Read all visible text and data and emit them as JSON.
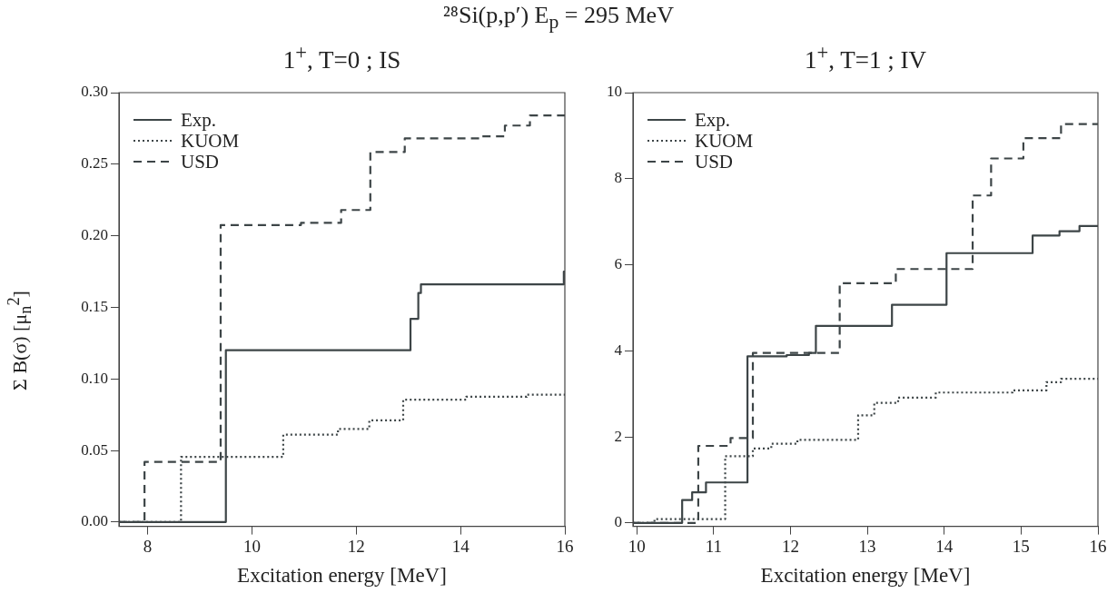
{
  "chart_data": [
    {
      "type": "other",
      "title": "²⁸Si(p,p′)  E$_{p}$ = 295 MeV"
    },
    {
      "type": "step",
      "title": "1$^{+}$, T=0 ; IS",
      "xlabel": "Excitation energy [MeV]",
      "ylabel": "Σ B(σ)  [μ$_{n}$$^{2}$]",
      "xlim": [
        7.45,
        16
      ],
      "xticks": [
        8,
        10,
        12,
        14,
        16
      ],
      "ylim": [
        -0.003,
        0.3
      ],
      "yticks": [
        {
          "value": 0,
          "label": "0.00"
        },
        {
          "value": 0.05,
          "label": "0.05"
        },
        {
          "value": 0.1,
          "label": "0.10"
        },
        {
          "value": 0.15,
          "label": "0.15"
        },
        {
          "value": 0.2,
          "label": "0.20"
        },
        {
          "value": 0.25,
          "label": "0.25"
        },
        {
          "value": 0.3,
          "label": "0.30"
        }
      ],
      "grid": false,
      "legend": "top left",
      "marker": "none",
      "series": [
        {
          "name": "Exp.",
          "color": "#3d4547",
          "line_style": "solid",
          "x": [
            7.45,
            9.5,
            13.04,
            13.19,
            13.24,
            15.98,
            16
          ],
          "values": [
            0,
            0.12,
            0.142,
            0.16,
            0.166,
            0.175,
            0.175
          ]
        },
        {
          "name": "KUOM",
          "color": "#3d4547",
          "line_style": "dotted",
          "x": [
            7.45,
            8.64,
            10.6,
            11.65,
            12.25,
            12.9,
            14.11,
            15.27,
            16
          ],
          "values": [
            0,
            0.0455,
            0.061,
            0.065,
            0.071,
            0.0855,
            0.0875,
            0.089,
            0.089
          ]
        },
        {
          "name": "USD",
          "color": "#3d4547",
          "line_style": "dashed",
          "x": [
            7.45,
            7.94,
            9.4,
            10.94,
            11.71,
            12.27,
            12.93,
            14.4,
            14.85,
            15.33,
            16
          ],
          "values": [
            0,
            0.042,
            0.2075,
            0.209,
            0.218,
            0.2585,
            0.268,
            0.2695,
            0.277,
            0.284,
            0.284
          ]
        }
      ]
    },
    {
      "type": "step",
      "title": "1$^{+}$, T=1 ; IV",
      "xlabel": "Excitation energy [MeV]",
      "xlim": [
        9.95,
        16
      ],
      "xticks": [
        10,
        11,
        12,
        13,
        14,
        15,
        16
      ],
      "ylim": [
        -0.08,
        10
      ],
      "yticks": [
        0,
        2,
        4,
        6,
        8,
        10
      ],
      "grid": false,
      "legend": "top left",
      "marker": "none",
      "series": [
        {
          "name": "Exp.",
          "color": "#3d4547",
          "line_style": "solid",
          "x": [
            9.95,
            10.59,
            10.72,
            10.9,
            11.44,
            11.95,
            12.24,
            12.33,
            13.32,
            14.03,
            15.15,
            15.5,
            15.76,
            16
          ],
          "values": [
            0,
            0.53,
            0.71,
            0.94,
            3.87,
            3.9,
            3.95,
            4.58,
            5.07,
            6.27,
            6.68,
            6.78,
            6.9,
            6.9
          ]
        },
        {
          "name": "KUOM",
          "color": "#3d4547",
          "line_style": "dotted",
          "x": [
            9.95,
            10.23,
            11.15,
            11.51,
            11.75,
            12.09,
            12.88,
            13.09,
            13.4,
            13.89,
            14.89,
            15.33,
            15.52,
            16
          ],
          "values": [
            0,
            0.09,
            1.55,
            1.73,
            1.84,
            1.93,
            2.5,
            2.79,
            2.91,
            3.03,
            3.08,
            3.27,
            3.35,
            3.35
          ]
        },
        {
          "name": "USD",
          "color": "#3d4547",
          "line_style": "dashed",
          "x": [
            9.95,
            10.8,
            11.22,
            11.51,
            12.64,
            13.37,
            14.37,
            14.61,
            15.03,
            15.52,
            16
          ],
          "values": [
            0,
            1.79,
            1.97,
            3.95,
            5.57,
            5.9,
            7.61,
            8.47,
            8.94,
            9.27,
            9.27
          ]
        }
      ]
    }
  ]
}
